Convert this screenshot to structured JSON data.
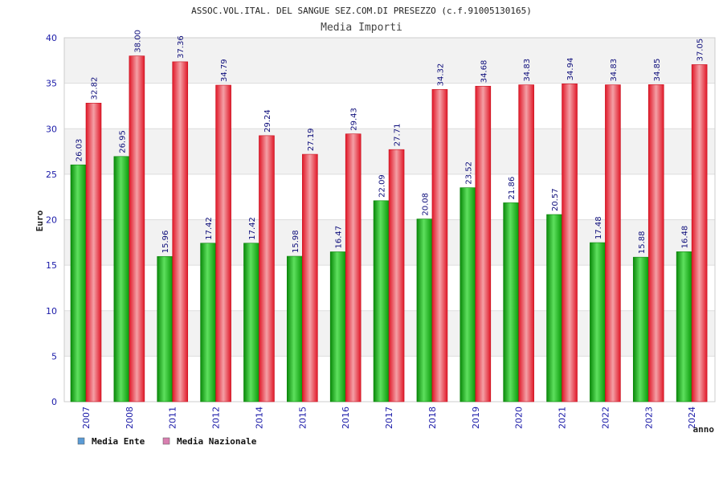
{
  "chart_data": {
    "type": "bar",
    "title": "ASSOC.VOL.ITAL. DEL SANGUE SEZ.COM.DI PRESEZZO (c.f.91005130165)",
    "subtitle": "Media Importi",
    "xlabel": "anno",
    "ylabel": "Euro",
    "ylim": [
      0,
      40
    ],
    "yticks": [
      0,
      5,
      10,
      15,
      20,
      25,
      30,
      35,
      40
    ],
    "categories": [
      "2007",
      "2008",
      "2011",
      "2012",
      "2014",
      "2015",
      "2016",
      "2017",
      "2018",
      "2019",
      "2020",
      "2021",
      "2022",
      "2023",
      "2024"
    ],
    "series": [
      {
        "name": "Media Ente",
        "color": "#0fa50f",
        "values": [
          26.03,
          26.95,
          15.96,
          17.42,
          17.42,
          15.98,
          16.47,
          22.09,
          20.08,
          23.52,
          21.86,
          20.57,
          17.48,
          15.88,
          16.48
        ],
        "labels": [
          "26.03",
          "26.95",
          "15.96",
          "17.42",
          "17.42",
          "15.98",
          "16.47",
          "22.09",
          "20.08",
          "23.52",
          "21.86",
          "20.57",
          "17.48",
          "15.88",
          "16.48"
        ]
      },
      {
        "name": "Media Nazionale",
        "color": "#e8202e",
        "values": [
          32.82,
          38.0,
          37.36,
          34.79,
          29.24,
          27.19,
          29.43,
          27.71,
          34.32,
          34.68,
          34.83,
          34.94,
          34.83,
          34.85,
          37.05
        ],
        "labels": [
          "32.82",
          "38.00",
          "37.36",
          "34.79",
          "29.24",
          "27.19",
          "29.43",
          "27.71",
          "34.32",
          "34.68",
          "34.83",
          "34.94",
          "34.83",
          "34.85",
          "37.05"
        ]
      }
    ],
    "legend": [
      {
        "label": "Media Ente",
        "color": "#5b9bd5"
      },
      {
        "label": "Media Nazionale",
        "color": "#d97fb0"
      }
    ],
    "legend_position": "bottom-left",
    "grid": true
  }
}
